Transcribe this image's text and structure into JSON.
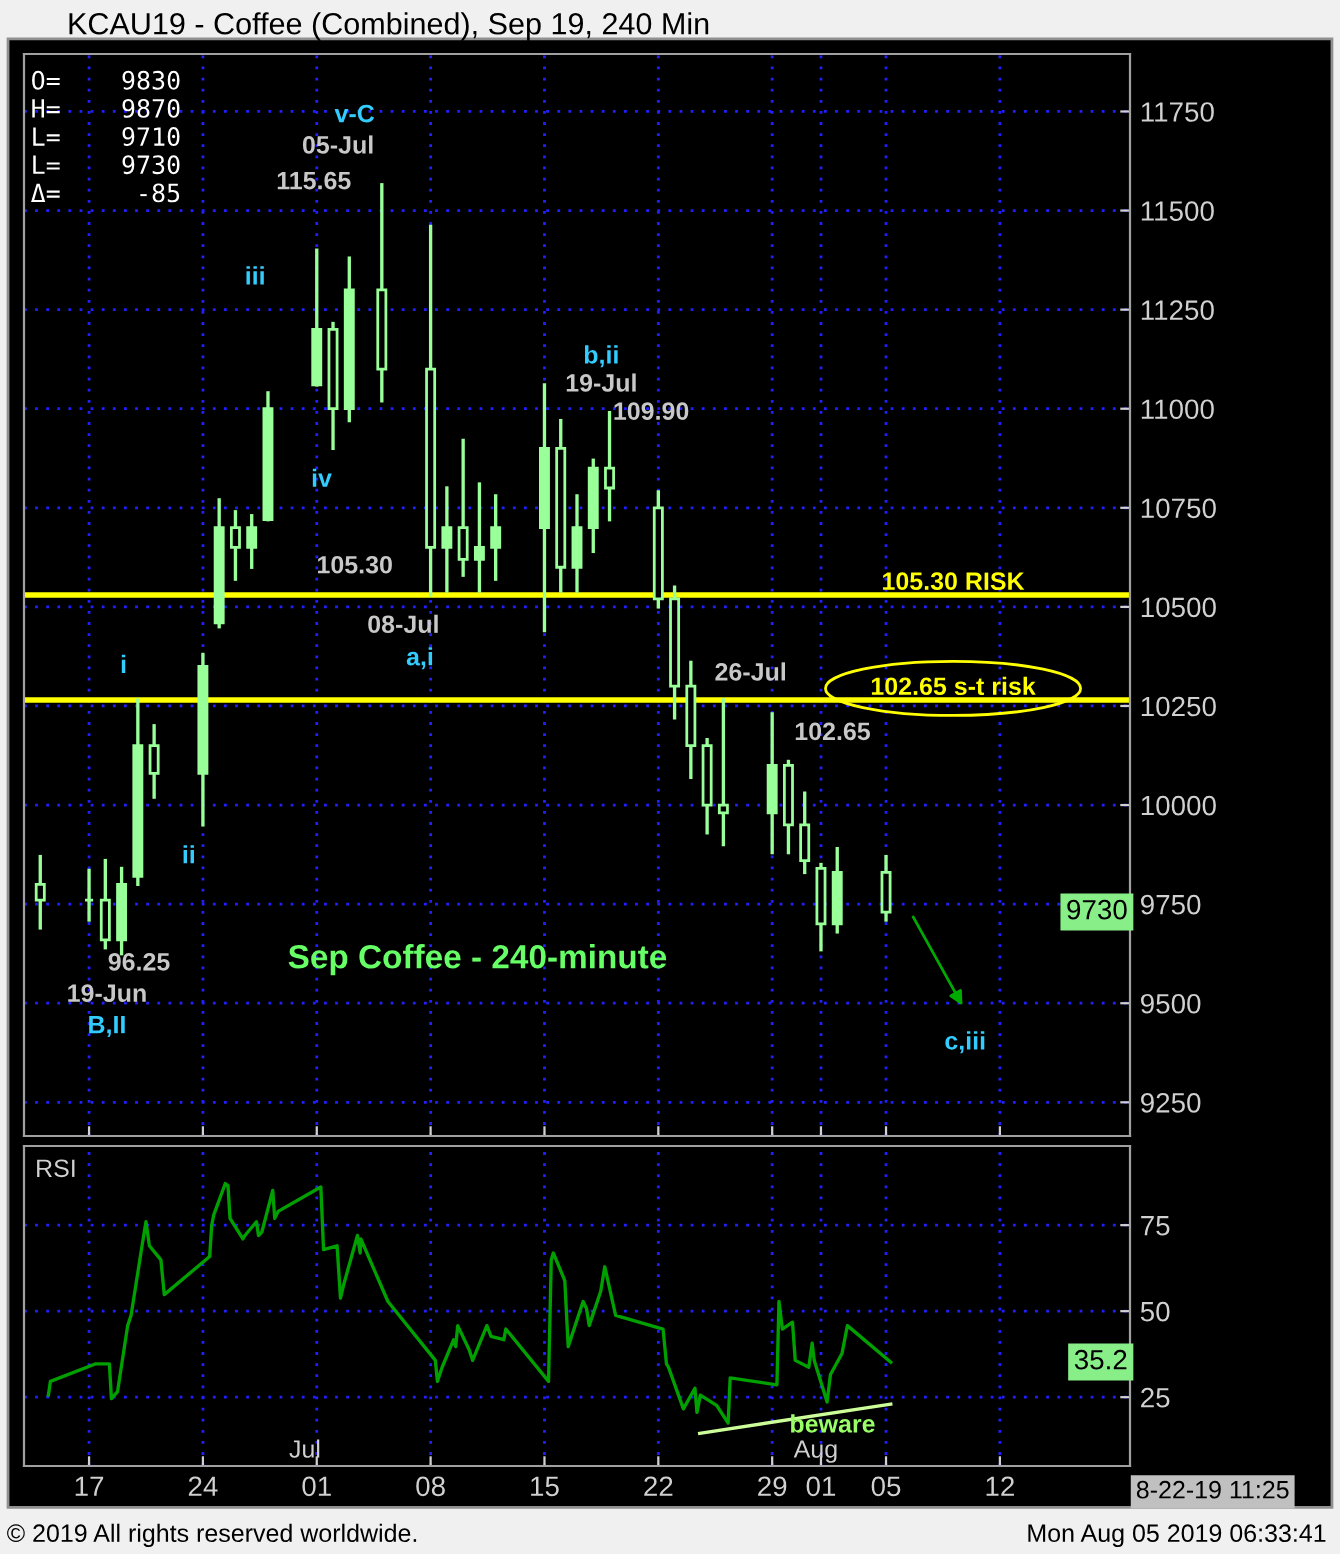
{
  "chart_data": [
    {
      "type": "candlestick",
      "title": "KCAU19 - Coffee (Combined), Sep 19, 240 Min",
      "series": [
        {
          "color": "#99ff99",
          "x": [
            "2019-06-14",
            "2019-06-17",
            "2019-06-18",
            "2019-06-19",
            "2019-06-20",
            "2019-06-21",
            "2019-06-24",
            "2019-06-25",
            "2019-06-26",
            "2019-06-27",
            "2019-06-28",
            "2019-07-01",
            "2019-07-02",
            "2019-07-03",
            "2019-07-05",
            "2019-07-08",
            "2019-07-09",
            "2019-07-10",
            "2019-07-11",
            "2019-07-12",
            "2019-07-15",
            "2019-07-16",
            "2019-07-17",
            "2019-07-18",
            "2019-07-19",
            "2019-07-22",
            "2019-07-23",
            "2019-07-24",
            "2019-07-25",
            "2019-07-26",
            "2019-07-29",
            "2019-07-30",
            "2019-07-31",
            "2019-08-01",
            "2019-08-02",
            "2019-08-05"
          ],
          "ohlc": [
            [
              9800,
              9870,
              9690,
              9760
            ],
            [
              9760,
              9835,
              9710,
              9760
            ],
            [
              9760,
              9860,
              9640,
              9660
            ],
            [
              9660,
              9840,
              9625,
              9800
            ],
            [
              9820,
              10265,
              9800,
              10150
            ],
            [
              10150,
              10200,
              10020,
              10080
            ],
            [
              10080,
              10380,
              9950,
              10350
            ],
            [
              10460,
              10770,
              10450,
              10700
            ],
            [
              10700,
              10740,
              10570,
              10650
            ],
            [
              10650,
              10730,
              10600,
              10700
            ],
            [
              10720,
              11040,
              10720,
              11000
            ],
            [
              11060,
              11400,
              11060,
              11200
            ],
            [
              11200,
              11215,
              10900,
              11000
            ],
            [
              11000,
              11380,
              10970,
              11300
            ],
            [
              11300,
              11565,
              11020,
              11100
            ],
            [
              11100,
              11460,
              10530,
              10650
            ],
            [
              10650,
              10800,
              10540,
              10700
            ],
            [
              10700,
              10920,
              10580,
              10620
            ],
            [
              10620,
              10810,
              10540,
              10650
            ],
            [
              10650,
              10780,
              10570,
              10700
            ],
            [
              10700,
              11060,
              10440,
              10900
            ],
            [
              10900,
              10970,
              10540,
              10600
            ],
            [
              10600,
              10780,
              10540,
              10700
            ],
            [
              10700,
              10870,
              10640,
              10850
            ],
            [
              10850,
              10990,
              10720,
              10800
            ],
            [
              10750,
              10790,
              10500,
              10520
            ],
            [
              10520,
              10550,
              10220,
              10300
            ],
            [
              10300,
              10360,
              10070,
              10150
            ],
            [
              10150,
              10165,
              9930,
              10000
            ],
            [
              10000,
              10265,
              9900,
              9980
            ],
            [
              9980,
              10230,
              9880,
              10100
            ],
            [
              10100,
              10110,
              9880,
              9950
            ],
            [
              9950,
              10030,
              9830,
              9860
            ],
            [
              9840,
              9850,
              9635,
              9700
            ],
            [
              9700,
              9890,
              9680,
              9830
            ],
            [
              9830,
              9870,
              9710,
              9730
            ]
          ]
        }
      ],
      "xlim": [
        "2019-06-13",
        "2019-08-20"
      ],
      "xticks": [
        {
          "value": "2019-06-17",
          "label": null
        },
        {
          "value": "2019-06-24",
          "label": null
        },
        {
          "value": "2019-07-01",
          "label": null
        },
        {
          "value": "2019-07-08",
          "label": null
        },
        {
          "value": "2019-07-15",
          "label": null
        },
        {
          "value": "2019-07-22",
          "label": null
        },
        {
          "value": "2019-07-29",
          "label": null
        },
        {
          "value": "2019-08-01",
          "label": null
        },
        {
          "value": "2019-08-05",
          "label": null
        },
        {
          "value": "2019-08-12",
          "label": null
        }
      ],
      "ylim": [
        9165,
        11895
      ],
      "yticks": [
        9250,
        9500,
        9750,
        10000,
        10250,
        10500,
        10750,
        11000,
        11250,
        11500,
        11750
      ],
      "tick_labels": "y",
      "grid": true,
      "ref_lines": [
        {
          "axis": "y",
          "value": 10530,
          "label": "105.30 RISK",
          "color": "#ffff00"
        },
        {
          "axis": "y",
          "value": 10265,
          "label": "102.65 s-t risk",
          "color": "#ffff00"
        }
      ],
      "annotations": [
        "O=    9830\nH=    9870\nL=    9710\nL=    9730\nΔ=     -85",
        "Sep Coffee - 240-minute",
        {
          "text": "9730",
          "y": 9730
        },
        "v-C",
        "05-Jul",
        "115.65",
        "iii",
        "iv",
        "i",
        "ii",
        "96.25",
        "19-Jun",
        "B,II",
        "105.30",
        "08-Jul",
        "a,i",
        "b,ii",
        "19-Jul",
        "109.90",
        "26-Jul",
        "102.65",
        "c,iii"
      ]
    },
    {
      "type": "line",
      "title": "RSI",
      "series": [
        {
          "color": "#00a000",
          "x": [
            "2019-06-14T12:00",
            "2019-06-14T15:00",
            "2019-06-17T10:00",
            "2019-06-18T06:00",
            "2019-06-18T09:00",
            "2019-06-18T18:00",
            "2019-06-19T09:00",
            "2019-06-19T14:00",
            "2019-06-20T07:00",
            "2019-06-20T12:00",
            "2019-06-20T17:00",
            "2019-06-21T10:00",
            "2019-06-21T15:00",
            "2019-06-24T10:00",
            "2019-06-24T13:00",
            "2019-06-24T16:00",
            "2019-06-25T09:00",
            "2019-06-25T13:00",
            "2019-06-25T16:00",
            "2019-06-26T11:00",
            "2019-06-26T14:00",
            "2019-06-27T07:00",
            "2019-06-27T10:00",
            "2019-06-27T15:00",
            "2019-06-28T07:00",
            "2019-06-28T10:00",
            "2019-06-28T15:00",
            "2019-07-01T06:00",
            "2019-07-01T10:00",
            "2019-07-02T06:00",
            "2019-07-02T11:00",
            "2019-07-02T16:00",
            "2019-07-03T12:00",
            "2019-07-03T16:00",
            "2019-07-03T17:00",
            "2019-07-05T09:00",
            "2019-07-08T07:00",
            "2019-07-08T10:00",
            "2019-07-08T17:00",
            "2019-07-09T10:00",
            "2019-07-09T13:00",
            "2019-07-09T16:00",
            "2019-07-10T09:00",
            "2019-07-10T14:00",
            "2019-07-11T11:00",
            "2019-07-11T17:00",
            "2019-07-12T12:00",
            "2019-07-12T15:00",
            "2019-07-15T06:00",
            "2019-07-15T10:00",
            "2019-07-15T13:00",
            "2019-07-16T06:00",
            "2019-07-16T11:00",
            "2019-07-17T09:00",
            "2019-07-17T14:00",
            "2019-07-17T18:00",
            "2019-07-18T11:00",
            "2019-07-18T17:00",
            "2019-07-19T09:00",
            "2019-07-22T07:00",
            "2019-07-22T12:00",
            "2019-07-22T15:00",
            "2019-07-23T13:00",
            "2019-07-24T06:00",
            "2019-07-24T09:00",
            "2019-07-24T14:00",
            "2019-07-25T14:00",
            "2019-07-26T07:00",
            "2019-07-26T10:00",
            "2019-07-29T07:00",
            "2019-07-29T10:00",
            "2019-07-29T15:00",
            "2019-07-30T06:00",
            "2019-07-30T10:00",
            "2019-07-31T06:00",
            "2019-07-31T11:00",
            "2019-07-31T14:00",
            "2019-08-01T09:00",
            "2019-08-01T14:00",
            "2019-08-02T07:00",
            "2019-08-02T15:00",
            "2019-08-05T07:00"
          ],
          "values": [
            25.6,
            29.6,
            34.7,
            34.7,
            24.6,
            26.6,
            45.8,
            48.8,
            70.0,
            76.0,
            69.0,
            64.9,
            54.8,
            65.9,
            75.0,
            78.0,
            87.1,
            86.5,
            77.0,
            71.0,
            72.0,
            76.0,
            72.0,
            73.0,
            85.1,
            77.0,
            79.0,
            86.1,
            67.9,
            69.0,
            53.8,
            57.9,
            72.0,
            66.9,
            71.0,
            52.8,
            35.7,
            29.6,
            33.7,
            41.7,
            39.7,
            45.8,
            38.7,
            35.7,
            45.8,
            42.7,
            41.7,
            44.8,
            29.6,
            64.9,
            66.9,
            58.9,
            39.7,
            52.8,
            50.8,
            45.8,
            55.8,
            62.9,
            48.8,
            44.8,
            34.7,
            33.7,
            21.6,
            27.6,
            20.6,
            25.6,
            22.6,
            17.5,
            30.6,
            28.6,
            52.8,
            44.8,
            46.8,
            35.7,
            33.7,
            40.7,
            35.7,
            23.6,
            31.6,
            37.7,
            45.8,
            35.2
          ]
        },
        {
          "color": "#ccff99",
          "x": [
            "2019-07-24T13:00",
            "2019-08-05T07:00"
          ],
          "values": [
            14.5,
            23.0
          ]
        }
      ],
      "xlim": [
        "2019-06-13",
        "2019-08-20"
      ],
      "xticks": [
        {
          "value": "2019-06-17",
          "label": "17"
        },
        {
          "value": "2019-06-24",
          "label": "24"
        },
        {
          "value": "2019-07-01",
          "label": "01"
        },
        {
          "value": "2019-07-08",
          "label": "08"
        },
        {
          "value": "2019-07-15",
          "label": "15"
        },
        {
          "value": "2019-07-22",
          "label": "22"
        },
        {
          "value": "2019-07-29",
          "label": "29"
        },
        {
          "value": "2019-08-01",
          "label": "01"
        },
        {
          "value": "2019-08-05",
          "label": "05"
        },
        {
          "value": "2019-08-12",
          "label": "12"
        }
      ],
      "ylim": [
        5,
        98
      ],
      "yticks": [
        25,
        50,
        75
      ],
      "grid": true,
      "annotations": [
        "© 2019 All rights reserved worldwide.",
        "Mon Aug 05 2019 06:33:41",
        "8-22-19 11:25",
        "beware",
        "Jul",
        "Aug",
        {
          "text": "35.2",
          "y": 35.2
        }
      ]
    }
  ]
}
